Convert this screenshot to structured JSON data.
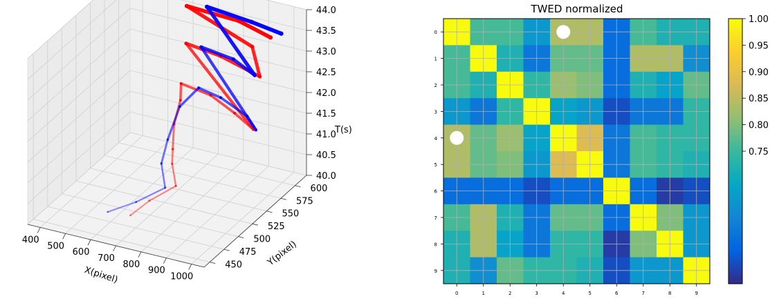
{
  "chart_data": [
    {
      "type": "scatter",
      "subtype": "3d-trajectories",
      "title": "",
      "xlabel": "X(pixel)",
      "ylabel": "Y(pixel)",
      "zlabel": "T(s)",
      "xlim": [
        350,
        1050
      ],
      "ylim": [
        440,
        620
      ],
      "zlim": [
        40,
        44
      ],
      "x_ticks": [
        400,
        500,
        600,
        700,
        800,
        900,
        1000
      ],
      "y_ticks": [
        450,
        475,
        500,
        525,
        550,
        575,
        600
      ],
      "z_ticks": [
        "40.0",
        "40.5",
        "41.0",
        "41.5",
        "42.0",
        "42.5",
        "43.0",
        "43.5",
        "44.0"
      ],
      "series": [
        {
          "name": "red trajectory",
          "color": "#ff0000",
          "points": [
            [
              690,
              470,
              40.35
            ],
            [
              720,
              490,
              40.5
            ],
            [
              780,
              510,
              40.7
            ],
            [
              720,
              530,
              40.9
            ],
            [
              700,
              540,
              41.1
            ],
            [
              660,
              560,
              41.4
            ],
            [
              640,
              580,
              41.7
            ],
            [
              620,
              590,
              41.95
            ],
            [
              760,
              580,
              42.0
            ],
            [
              900,
              560,
              42.02
            ],
            [
              1020,
              540,
              42.05
            ],
            [
              640,
              590,
              42.95
            ],
            [
              800,
              580,
              43.0
            ],
            [
              1000,
              560,
              43.05
            ],
            [
              880,
              600,
              43.1
            ],
            [
              620,
              600,
              43.7
            ],
            [
              850,
              590,
              43.8
            ],
            [
              1020,
              570,
              43.9
            ]
          ]
        },
        {
          "name": "blue trajectory",
          "color": "#0000ff",
          "points": [
            [
              600,
              470,
              40.3
            ],
            [
              690,
              480,
              40.55
            ],
            [
              760,
              500,
              40.75
            ],
            [
              700,
              520,
              41.0
            ],
            [
              680,
              540,
              41.3
            ],
            [
              660,
              570,
              41.7
            ],
            [
              690,
              590,
              41.95
            ],
            [
              800,
              580,
              42.0
            ],
            [
              950,
              560,
              42.02
            ],
            [
              1030,
              540,
              42.05
            ],
            [
              700,
              590,
              42.95
            ],
            [
              850,
              580,
              43.0
            ],
            [
              980,
              560,
              43.05
            ],
            [
              700,
              600,
              43.8
            ],
            [
              900,
              590,
              43.85
            ],
            [
              1040,
              580,
              43.9
            ]
          ]
        }
      ]
    },
    {
      "type": "heatmap",
      "title": "TWED normalized",
      "x_ticks": [
        "0",
        "1",
        "2",
        "3",
        "4",
        "5",
        "6",
        "7",
        "8",
        "9"
      ],
      "y_ticks": [
        "0",
        "1",
        "2",
        "3",
        "4",
        "5",
        "6",
        "7",
        "8",
        "9"
      ],
      "colorbar_ticks": [
        "1.00",
        "0.95",
        "0.90",
        "0.85",
        "0.80",
        "0.75"
      ],
      "colorbar_range": [
        0.5,
        1.0
      ],
      "colormap": "parula",
      "values": [
        [
          1.0,
          0.76,
          0.76,
          0.66,
          0.84,
          0.84,
          0.58,
          0.76,
          0.72,
          0.72
        ],
        [
          0.76,
          1.0,
          0.72,
          0.6,
          0.78,
          0.78,
          0.58,
          0.84,
          0.84,
          0.64
        ],
        [
          0.76,
          0.72,
          1.0,
          0.74,
          0.82,
          0.8,
          0.58,
          0.72,
          0.68,
          0.78
        ],
        [
          0.66,
          0.6,
          0.74,
          1.0,
          0.68,
          0.66,
          0.54,
          0.6,
          0.6,
          0.74
        ],
        [
          0.84,
          0.78,
          0.82,
          0.68,
          1.0,
          0.88,
          0.6,
          0.76,
          0.74,
          0.74
        ],
        [
          0.84,
          0.78,
          0.8,
          0.66,
          0.88,
          1.0,
          0.6,
          0.76,
          0.74,
          0.72
        ],
        [
          0.58,
          0.58,
          0.58,
          0.54,
          0.58,
          0.58,
          1.0,
          0.58,
          0.52,
          0.54
        ],
        [
          0.76,
          0.84,
          0.72,
          0.6,
          0.78,
          0.78,
          0.58,
          1.0,
          0.8,
          0.66
        ],
        [
          0.72,
          0.84,
          0.68,
          0.6,
          0.74,
          0.74,
          0.52,
          0.8,
          1.0,
          0.66
        ],
        [
          0.72,
          0.64,
          0.78,
          0.74,
          0.74,
          0.72,
          0.54,
          0.66,
          0.66,
          1.0
        ]
      ],
      "markers": [
        {
          "row": 0,
          "col": 4,
          "label": "white circle"
        },
        {
          "row": 4,
          "col": 0,
          "label": "white circle"
        }
      ]
    }
  ]
}
